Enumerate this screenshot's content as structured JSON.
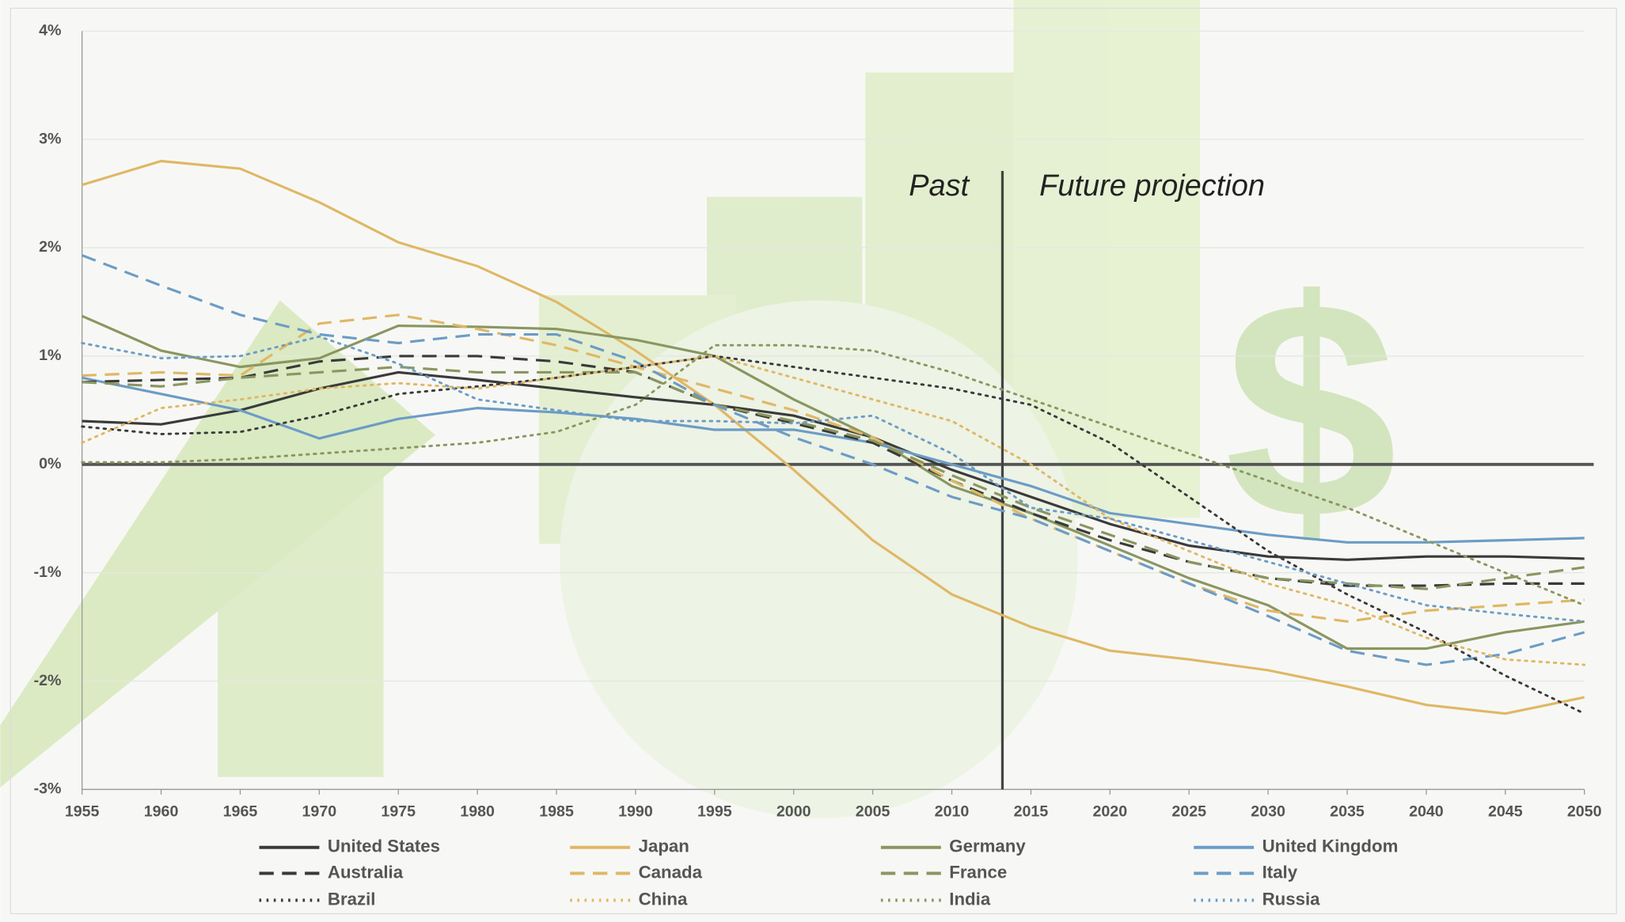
{
  "chart_data": {
    "type": "line",
    "x": [
      1955,
      1960,
      1965,
      1970,
      1975,
      1980,
      1985,
      1990,
      1995,
      2000,
      2005,
      2010,
      2015,
      2020,
      2025,
      2030,
      2035,
      2040,
      2045,
      2050
    ],
    "xlim": [
      1955,
      2050
    ],
    "xticks": [
      1955,
      1960,
      1965,
      1970,
      1975,
      1980,
      1985,
      1990,
      1995,
      2000,
      2005,
      2010,
      2015,
      2020,
      2025,
      2030,
      2035,
      2040,
      2045,
      2050
    ],
    "ylim": [
      -3,
      4
    ],
    "yticks": [
      {
        "value": -3,
        "label": "-3%"
      },
      {
        "value": -2,
        "label": "-2%"
      },
      {
        "value": -1,
        "label": "-1%"
      },
      {
        "value": 0,
        "label": "0%"
      },
      {
        "value": 1,
        "label": "1%"
      },
      {
        "value": 2,
        "label": "2%"
      },
      {
        "value": 3,
        "label": "3%"
      },
      {
        "value": 4,
        "label": "4%"
      }
    ],
    "grid": true,
    "legend": "bottom",
    "divider_x": 2013.2,
    "annotations": [
      "Past",
      "Future projection"
    ],
    "series": [
      {
        "name": "United States",
        "color": "#3a3a3a",
        "style": "solid",
        "values": [
          0.4,
          0.37,
          0.5,
          0.7,
          0.85,
          0.78,
          0.7,
          0.62,
          0.55,
          0.45,
          0.25,
          -0.05,
          -0.3,
          -0.55,
          -0.75,
          -0.85,
          -0.88,
          -0.85,
          -0.85,
          -0.87
        ]
      },
      {
        "name": "Japan",
        "color": "#e0b766",
        "style": "solid",
        "values": [
          2.58,
          2.8,
          2.73,
          2.42,
          2.05,
          1.83,
          1.5,
          1.05,
          0.55,
          -0.05,
          -0.7,
          -1.2,
          -1.5,
          -1.72,
          -1.8,
          -1.9,
          -2.05,
          -2.22,
          -2.3,
          -2.15
        ]
      },
      {
        "name": "Germany",
        "color": "#8a9660",
        "style": "solid",
        "values": [
          1.37,
          1.05,
          0.9,
          0.98,
          1.28,
          1.27,
          1.25,
          1.15,
          1.0,
          0.6,
          0.25,
          -0.2,
          -0.45,
          -0.75,
          -1.05,
          -1.3,
          -1.7,
          -1.7,
          -1.55,
          -1.45
        ]
      },
      {
        "name": "United Kingdom",
        "color": "#6c9cc6",
        "style": "solid",
        "values": [
          0.8,
          0.65,
          0.5,
          0.24,
          0.42,
          0.52,
          0.48,
          0.42,
          0.32,
          0.32,
          0.2,
          0.0,
          -0.2,
          -0.45,
          -0.55,
          -0.65,
          -0.72,
          -0.72,
          -0.7,
          -0.68
        ]
      },
      {
        "name": "Australia",
        "color": "#3a3a3a",
        "style": "dashed",
        "values": [
          0.76,
          0.78,
          0.8,
          0.95,
          1.0,
          1.0,
          0.95,
          0.85,
          0.55,
          0.38,
          0.2,
          -0.15,
          -0.45,
          -0.7,
          -0.9,
          -1.05,
          -1.12,
          -1.12,
          -1.1,
          -1.1
        ]
      },
      {
        "name": "Canada",
        "color": "#e0b766",
        "style": "dashed",
        "values": [
          0.82,
          0.85,
          0.82,
          1.3,
          1.38,
          1.25,
          1.1,
          0.9,
          0.7,
          0.5,
          0.25,
          -0.15,
          -0.5,
          -0.8,
          -1.1,
          -1.35,
          -1.45,
          -1.35,
          -1.3,
          -1.25
        ]
      },
      {
        "name": "France",
        "color": "#8a9660",
        "style": "dashed",
        "values": [
          0.76,
          0.72,
          0.8,
          0.85,
          0.9,
          0.85,
          0.85,
          0.85,
          0.55,
          0.4,
          0.22,
          -0.1,
          -0.4,
          -0.65,
          -0.9,
          -1.05,
          -1.1,
          -1.15,
          -1.05,
          -0.95
        ]
      },
      {
        "name": "Italy",
        "color": "#6c9cc6",
        "style": "dashed",
        "values": [
          1.93,
          1.65,
          1.38,
          1.2,
          1.12,
          1.2,
          1.2,
          0.95,
          0.55,
          0.25,
          0.0,
          -0.3,
          -0.5,
          -0.8,
          -1.1,
          -1.4,
          -1.72,
          -1.85,
          -1.75,
          -1.55
        ]
      },
      {
        "name": "Brazil",
        "color": "#3a3a3a",
        "style": "dotted",
        "values": [
          0.35,
          0.28,
          0.3,
          0.45,
          0.65,
          0.72,
          0.8,
          0.9,
          1.0,
          0.9,
          0.8,
          0.7,
          0.55,
          0.2,
          -0.3,
          -0.8,
          -1.2,
          -1.55,
          -1.95,
          -2.3
        ]
      },
      {
        "name": "China",
        "color": "#e0b766",
        "style": "dotted",
        "values": [
          0.2,
          0.52,
          0.6,
          0.7,
          0.75,
          0.7,
          0.8,
          0.9,
          1.0,
          0.8,
          0.6,
          0.4,
          0.0,
          -0.5,
          -0.8,
          -1.1,
          -1.3,
          -1.6,
          -1.8,
          -1.85
        ]
      },
      {
        "name": "India",
        "color": "#8a9660",
        "style": "dotted",
        "values": [
          0.02,
          0.02,
          0.05,
          0.1,
          0.15,
          0.2,
          0.3,
          0.55,
          1.1,
          1.1,
          1.05,
          0.85,
          0.6,
          0.35,
          0.1,
          -0.15,
          -0.4,
          -0.7,
          -1.0,
          -1.3
        ]
      },
      {
        "name": "Russia",
        "color": "#6c9cc6",
        "style": "dotted",
        "values": [
          1.12,
          0.98,
          1.0,
          1.18,
          0.93,
          0.6,
          0.5,
          0.4,
          0.4,
          0.38,
          0.45,
          0.1,
          -0.4,
          -0.5,
          -0.7,
          -0.9,
          -1.1,
          -1.3,
          -1.38,
          -1.45
        ]
      }
    ]
  }
}
